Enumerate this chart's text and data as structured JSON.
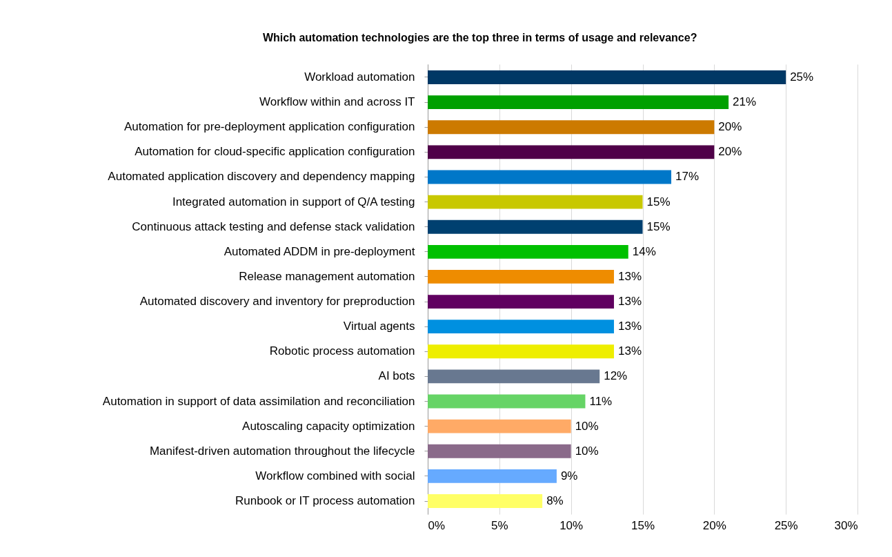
{
  "chart_data": {
    "type": "bar",
    "orientation": "horizontal",
    "title": "Which automation technologies are the top three in terms of usage and relevance?",
    "categories": [
      "Workload automation",
      "Workflow within and across IT",
      "Automation for pre-deployment application configuration",
      "Automation for cloud-specific application configuration",
      "Automated application discovery and dependency mapping",
      "Integrated automation in support of Q/A testing",
      "Continuous attack testing and defense stack validation",
      "Automated ADDM in pre-deployment",
      "Release management automation",
      "Automated discovery and inventory for preproduction",
      "Virtual agents",
      "Robotic process automation",
      "AI bots",
      "Automation in support of data assimilation and reconciliation",
      "Autoscaling capacity optimization",
      "Manifest-driven automation throughout the lifecycle",
      "Workflow combined with social",
      "Runbook or IT process automation"
    ],
    "values": [
      25,
      21,
      20,
      20,
      17,
      15,
      15,
      14,
      13,
      13,
      13,
      13,
      12,
      11,
      10,
      10,
      9,
      8
    ],
    "value_labels": [
      "25%",
      "21%",
      "20%",
      "20%",
      "17%",
      "15%",
      "15%",
      "14%",
      "13%",
      "13%",
      "13%",
      "13%",
      "12%",
      "11%",
      "10%",
      "10%",
      "9%",
      "8%"
    ],
    "colors": [
      "#003865",
      "#00a000",
      "#cc7a00",
      "#4f0048",
      "#0077c8",
      "#c8c800",
      "#004070",
      "#00c000",
      "#ee8c00",
      "#600060",
      "#0090e0",
      "#eeee00",
      "#687890",
      "#66d466",
      "#ffaa66",
      "#8a6a8a",
      "#66aaff",
      "#ffff66"
    ],
    "xlim": [
      0,
      30
    ],
    "xticks": [
      {
        "value": 0,
        "label": "0%"
      },
      {
        "value": 5,
        "label": "5%"
      },
      {
        "value": 10,
        "label": "10%"
      },
      {
        "value": 15,
        "label": "15%"
      },
      {
        "value": 20,
        "label": "20%"
      },
      {
        "value": 25,
        "label": "25%"
      },
      {
        "value": 30,
        "label": "30%"
      }
    ],
    "grid": "x"
  }
}
